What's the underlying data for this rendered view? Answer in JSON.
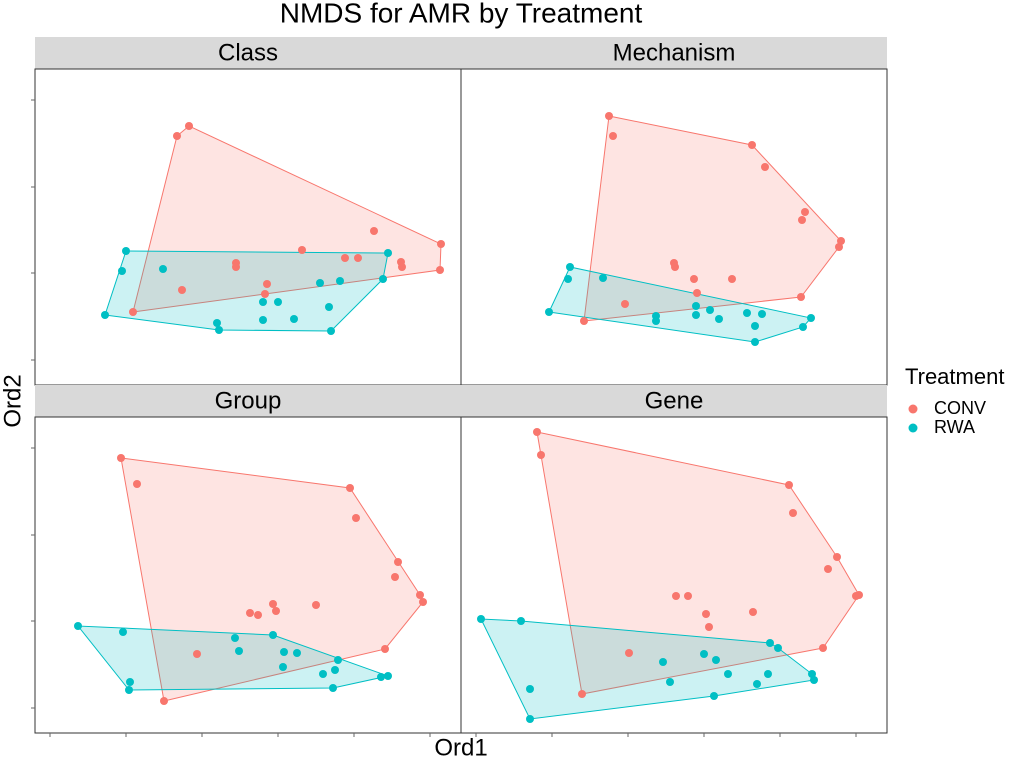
{
  "chart_data": {
    "type": "scatter",
    "title": "NMDS for AMR by Treatment",
    "x_label": "Ord1",
    "y_label": "Ord2",
    "legend_title": "Treatment",
    "xlim": [
      0,
      426
    ],
    "ylim": [
      0,
      316
    ],
    "xticks": [
      15,
      91,
      167,
      243,
      319,
      395
    ],
    "yticks": [
      25,
      112,
      198,
      285
    ],
    "panels": [
      {
        "title": "Class",
        "series": [
          {
            "name": "CONV",
            "color": "#F8766D",
            "x": [
              142,
              154,
              406,
              405,
              339,
              366,
              367,
              267,
              323,
              310,
              201,
              201,
              232,
              230,
              147,
              98
            ],
            "y": [
              249,
              259,
              141,
              115,
              154,
              123,
              118,
              135,
              127,
              127,
              122,
              118,
              101,
              91,
              95,
              73
            ]
          },
          {
            "name": "RWA",
            "color": "#00BFC4",
            "x": [
              91,
              87,
              128,
              70,
              182,
              184,
              228,
              243,
              228,
              259,
              285,
              305,
              353,
              348,
              294,
              296
            ],
            "y": [
              134,
              114,
              116,
              70,
              62,
              55,
              83,
              83,
              65,
              66,
              102,
              104,
              132,
              106,
              78,
              54
            ]
          }
        ]
      },
      {
        "title": "Mechanism",
        "series": [
          {
            "name": "CONV",
            "color": "#F8766D",
            "x": [
              148,
              152,
              291,
              304,
              344,
              341,
              380,
              378,
              340,
              213,
              214,
              233,
              236,
              271,
              164,
              123
            ],
            "y": [
              269,
              249,
              240,
              218,
              173,
              165,
              144,
              138,
              88,
              122,
              118,
              106,
              92,
              106,
              81,
              64
            ]
          },
          {
            "name": "RWA",
            "color": "#00BFC4",
            "x": [
              109,
              107,
              142,
              88,
              195,
              195,
              235,
              235,
              249,
              258,
              286,
              301,
              294,
              294,
              350,
              342
            ],
            "y": [
              118,
              106,
              107,
              73,
              69,
              64,
              79,
              70,
              75,
              66,
              72,
              71,
              59,
              43,
              67,
              58
            ]
          }
        ]
      },
      {
        "title": "Group",
        "series": [
          {
            "name": "CONV",
            "color": "#F8766D",
            "x": [
              86,
              102,
              315,
              321,
              363,
              360,
              385,
              388,
              350,
              281,
              215,
              223,
              238,
              241,
              162,
              129
            ],
            "y": [
              275,
              249,
              245,
              215,
              171,
              156,
              138,
              131,
              84,
              128,
              120,
              118,
              129,
              122,
              79,
              32
            ]
          },
          {
            "name": "RWA",
            "color": "#00BFC4",
            "x": [
              43,
              88,
              95,
              94,
              200,
              204,
              238,
              249,
              262,
              248,
              303,
              288,
              300,
              298,
              346,
              353
            ],
            "y": [
              107,
              101,
              51,
              43,
              95,
              82,
              98,
              81,
              80,
              66,
              73,
              59,
              63,
              45,
              56,
              57
            ]
          }
        ]
      },
      {
        "title": "Gene",
        "series": [
          {
            "name": "CONV",
            "color": "#F8766D",
            "x": [
              76,
              80,
              328,
              332,
              376,
              367,
              395,
              398,
              362,
              215,
              227,
              245,
              248,
              292,
              168,
              121
            ],
            "y": [
              301,
              278,
              248,
              220,
              176,
              164,
              137,
              138,
              85,
              137,
              137,
              119,
              106,
              121,
              80,
              39
            ]
          },
          {
            "name": "RWA",
            "color": "#00BFC4",
            "x": [
              20,
              60,
              69,
              69,
              202,
              209,
              243,
              255,
              253,
              267,
              296,
              307,
              309,
              317,
              351,
              353
            ],
            "y": [
              114,
              112,
              44,
              14,
              71,
              51,
              79,
              73,
              37,
              59,
              49,
              59,
              90,
              85,
              59,
              53
            ]
          }
        ]
      }
    ]
  }
}
